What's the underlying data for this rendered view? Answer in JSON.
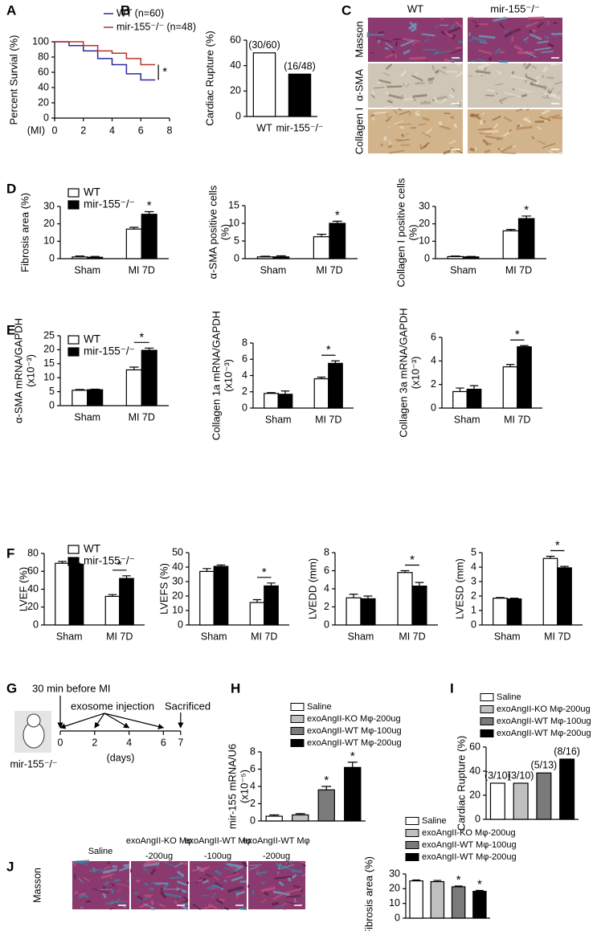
{
  "chart_data": [
    {
      "type": "line",
      "panel": "A",
      "ylabel": "Percent Survial (%)",
      "xlabel": "(MI)",
      "x": [
        0,
        1,
        1,
        2,
        2,
        3,
        3,
        4,
        4,
        5,
        5,
        6,
        6,
        7
      ],
      "series": [
        {
          "name": "WT (n=60)",
          "color": "#2b2b9a",
          "values": [
            100,
            100,
            95,
            95,
            88,
            88,
            78,
            78,
            70,
            70,
            58,
            58,
            50,
            50
          ]
        },
        {
          "name": "mir-155⁻/⁻ (n=48)",
          "color": "#b8342a",
          "values": [
            100,
            100,
            100,
            100,
            95,
            95,
            88,
            88,
            85,
            85,
            78,
            78,
            70,
            70
          ]
        }
      ],
      "xlim": [
        0,
        8
      ],
      "xticks": [
        0,
        2,
        4,
        6,
        8
      ],
      "ylim": [
        0,
        100
      ],
      "yticks": [
        0,
        20,
        40,
        60,
        80,
        100
      ],
      "annotations": [
        {
          "text": "*",
          "bracket": true
        }
      ]
    },
    {
      "type": "bar",
      "panel": "B",
      "ylabel": "Cardiac Rupture (%)",
      "categories": [
        "WT",
        "mir-155⁻/⁻"
      ],
      "values": [
        50,
        33.3
      ],
      "value_labels": [
        "(30/60)",
        "(16/48)"
      ],
      "colors": [
        "#ffffff",
        "#000000"
      ],
      "ylim": [
        0,
        60
      ],
      "yticks": [
        0,
        20,
        40,
        60
      ]
    },
    {
      "type": "bar",
      "panel": "D",
      "ylabel": "Fibrosis area (%)",
      "categories": [
        "Sham",
        "MI 7D"
      ],
      "series": [
        {
          "name": "WT",
          "color": "#ffffff",
          "values": [
            1,
            17
          ],
          "errors": [
            0.5,
            1
          ]
        },
        {
          "name": "mir-155⁻/⁻",
          "color": "#000000",
          "values": [
            0.8,
            25.5
          ],
          "errors": [
            0.5,
            1.5
          ]
        }
      ],
      "ylim": [
        0,
        30
      ],
      "yticks": [
        0,
        10,
        20,
        30
      ],
      "annotations": [
        {
          "text": "*",
          "category": 1,
          "series": 1
        }
      ]
    },
    {
      "type": "bar",
      "ylabel": [
        "α-SMA positive cells",
        "(%)"
      ],
      "categories": [
        "Sham",
        "MI 7D"
      ],
      "series": [
        {
          "color": "#ffffff",
          "values": [
            0.5,
            6.2
          ],
          "errors": [
            0.2,
            0.7
          ]
        },
        {
          "color": "#000000",
          "values": [
            0.5,
            10
          ],
          "errors": [
            0.3,
            0.6
          ]
        }
      ],
      "ylim": [
        0,
        15
      ],
      "yticks": [
        0,
        5,
        10,
        15
      ],
      "annotations": [
        {
          "text": "*",
          "category": 1,
          "series": 1
        }
      ]
    },
    {
      "type": "bar",
      "ylabel": [
        "Collagen I positive cells",
        "(%)"
      ],
      "categories": [
        "Sham",
        "MI 7D"
      ],
      "series": [
        {
          "color": "#ffffff",
          "values": [
            1.2,
            16
          ],
          "errors": [
            0.3,
            0.8
          ]
        },
        {
          "color": "#000000",
          "values": [
            1,
            23
          ],
          "errors": [
            0.3,
            1.5
          ]
        }
      ],
      "ylim": [
        0,
        30
      ],
      "yticks": [
        0,
        10,
        20,
        30
      ],
      "annotations": [
        {
          "text": "*",
          "category": 1,
          "series": 1
        }
      ]
    },
    {
      "type": "bar",
      "panel": "E",
      "ylabel": [
        "α-SMA mRNA/GAPDH",
        "(x10⁻³)"
      ],
      "categories": [
        "Sham",
        "MI 7D"
      ],
      "series": [
        {
          "name": "WT",
          "color": "#ffffff",
          "values": [
            5.5,
            12.8
          ],
          "errors": [
            0.3,
            1
          ]
        },
        {
          "name": "mir-155⁻/⁻",
          "color": "#000000",
          "values": [
            5.7,
            19.8
          ],
          "errors": [
            0.2,
            0.8
          ]
        }
      ],
      "ylim": [
        0,
        25
      ],
      "yticks": [
        0,
        5,
        10,
        15,
        20,
        25
      ],
      "annotations": [
        {
          "text": "*",
          "category": 1,
          "bracket": true
        }
      ]
    },
    {
      "type": "bar",
      "ylabel": [
        "Collagen 1a mRNA/GAPDH",
        "(x10⁻³)"
      ],
      "categories": [
        "Sham",
        "MI 7D"
      ],
      "series": [
        {
          "color": "#ffffff",
          "values": [
            1.8,
            3.6
          ],
          "errors": [
            0.1,
            0.2
          ]
        },
        {
          "color": "#000000",
          "values": [
            1.7,
            5.5
          ],
          "errors": [
            0.4,
            0.3
          ]
        }
      ],
      "ylim": [
        0,
        8
      ],
      "yticks": [
        0,
        2,
        4,
        6,
        8
      ],
      "annotations": [
        {
          "text": "*",
          "category": 1,
          "bracket": true
        }
      ]
    },
    {
      "type": "bar",
      "ylabel": [
        "Collagen 3a mRNA/GAPDH",
        "(x10⁻³)"
      ],
      "categories": [
        "Sham",
        "MI 7D"
      ],
      "series": [
        {
          "color": "#ffffff",
          "values": [
            1.4,
            3.5
          ],
          "errors": [
            0.3,
            0.2
          ]
        },
        {
          "color": "#000000",
          "values": [
            1.6,
            5.2
          ],
          "errors": [
            0.3,
            0.1
          ]
        }
      ],
      "ylim": [
        0,
        6
      ],
      "yticks": [
        0,
        2,
        4,
        6
      ],
      "annotations": [
        {
          "text": "*",
          "category": 1,
          "bracket": true
        }
      ]
    },
    {
      "type": "bar",
      "panel": "F",
      "ylabel": "LVEF (%)",
      "categories": [
        "Sham",
        "MI 7D"
      ],
      "series": [
        {
          "name": "WT",
          "color": "#ffffff",
          "values": [
            69,
            32
          ],
          "errors": [
            2,
            2
          ]
        },
        {
          "name": "mir-155⁻/⁻",
          "color": "#000000",
          "values": [
            68,
            52
          ],
          "errors": [
            1,
            3
          ]
        }
      ],
      "ylim": [
        0,
        80
      ],
      "yticks": [
        0,
        20,
        40,
        60,
        80
      ],
      "annotations": [
        {
          "text": "*",
          "category": 1,
          "bracket": true
        }
      ]
    },
    {
      "type": "bar",
      "ylabel": "LVEFS (%)",
      "categories": [
        "Sham",
        "MI 7D"
      ],
      "series": [
        {
          "color": "#ffffff",
          "values": [
            37,
            15.5
          ],
          "errors": [
            2,
            2
          ]
        },
        {
          "color": "#000000",
          "values": [
            40.5,
            27
          ],
          "errors": [
            1,
            2
          ]
        }
      ],
      "ylim": [
        0,
        50
      ],
      "yticks": [
        0,
        10,
        20,
        30,
        40,
        50
      ],
      "annotations": [
        {
          "text": "*",
          "category": 1,
          "bracket": true
        }
      ]
    },
    {
      "type": "bar",
      "ylabel": "LVEDD (mm)",
      "categories": [
        "Sham",
        "MI 7D"
      ],
      "series": [
        {
          "color": "#ffffff",
          "values": [
            3,
            5.8
          ],
          "errors": [
            0.4,
            0.2
          ]
        },
        {
          "color": "#000000",
          "values": [
            2.9,
            4.3
          ],
          "errors": [
            0.3,
            0.4
          ]
        }
      ],
      "ylim": [
        0,
        8
      ],
      "yticks": [
        0,
        2,
        4,
        6,
        8
      ],
      "annotations": [
        {
          "text": "*",
          "category": 1,
          "bracket": true
        }
      ]
    },
    {
      "type": "bar",
      "ylabel": "LVESD (mm)",
      "categories": [
        "Sham",
        "MI 7D"
      ],
      "series": [
        {
          "color": "#ffffff",
          "values": [
            1.85,
            4.6
          ],
          "errors": [
            0.05,
            0.15
          ]
        },
        {
          "color": "#000000",
          "values": [
            1.8,
            3.95
          ],
          "errors": [
            0.05,
            0.1
          ]
        }
      ],
      "ylim": [
        0,
        5
      ],
      "yticks": [
        0,
        1,
        2,
        3,
        4,
        5
      ],
      "annotations": [
        {
          "text": "*",
          "category": 1,
          "bracket": true
        }
      ]
    },
    {
      "type": "bar",
      "panel": "H",
      "ylabel": [
        "mir-155 mRNA/U6",
        "(x10⁻⁵)"
      ],
      "legend": "top",
      "categories": [
        "Saline",
        "exoAngII-KO Mφ-200ug",
        "exoAngII-WT Mφ-100ug",
        "exoAngII-WT Mφ-200ug"
      ],
      "values": [
        0.55,
        0.7,
        3.6,
        6.2
      ],
      "errors": [
        0.15,
        0.15,
        0.4,
        0.6
      ],
      "colors": [
        "#ffffff",
        "#c0c0c0",
        "#7a7a7a",
        "#000000"
      ],
      "ylim": [
        0,
        8
      ],
      "yticks": [
        0,
        2,
        4,
        6,
        8
      ],
      "annotations": [
        {
          "text": "*",
          "category": 2
        },
        {
          "text": "*",
          "category": 3
        }
      ]
    },
    {
      "type": "bar",
      "panel": "I",
      "ylabel": "Cardiac Rupture (%)",
      "legend": "top",
      "categories": [
        "Saline",
        "exoAngII-KO Mφ-200ug",
        "exoAngII-WT Mφ-100ug",
        "exoAngII-WT Mφ-200ug"
      ],
      "values": [
        30,
        30,
        38.5,
        50
      ],
      "value_labels": [
        "(3/10)",
        "(3/10)",
        "(5/13)",
        "(8/16)"
      ],
      "colors": [
        "#ffffff",
        "#c0c0c0",
        "#7a7a7a",
        "#000000"
      ],
      "ylim": [
        0,
        60
      ],
      "yticks": [
        0,
        20,
        40,
        60
      ]
    },
    {
      "type": "bar",
      "ylabel": "Fibrosis area (%)",
      "legend": "top",
      "categories": [
        "Saline",
        "exoAngII-KO Mφ-200ug",
        "exoAngII-WT Mφ-100ug",
        "exoAngII-WT Mφ-200ug"
      ],
      "values": [
        25.3,
        24.8,
        21.3,
        18.2
      ],
      "errors": [
        0.6,
        0.8,
        0.5,
        0.6
      ],
      "colors": [
        "#ffffff",
        "#c0c0c0",
        "#7a7a7a",
        "#000000"
      ],
      "ylim": [
        0,
        30
      ],
      "yticks": [
        0,
        10,
        20,
        30
      ],
      "annotations": [
        {
          "text": "*",
          "category": 2
        },
        {
          "text": "*",
          "category": 3
        }
      ]
    }
  ],
  "images_c": {
    "panel": "C",
    "columns": [
      "WT",
      "mir-155⁻/⁻"
    ],
    "rows": [
      "Masson",
      "α-SMA",
      "Collagen I"
    ]
  },
  "timeline": {
    "panel": "G",
    "before": "30 min before MI",
    "injection": "exosome injection",
    "end": "Sacrificed",
    "mouse": "mir-155⁻/⁻",
    "unit": "(days)",
    "ticks": [
      0,
      2,
      4,
      6,
      7
    ]
  },
  "images_j": {
    "panel": "J",
    "row": "Masson",
    "columns": [
      [
        "Saline"
      ],
      [
        "exoAngII-KO Mφ",
        "-200ug"
      ],
      [
        "exoAngII-WT Mφ",
        "-100ug"
      ],
      [
        "exoAngII-WT Mφ",
        "-200ug"
      ]
    ]
  }
}
